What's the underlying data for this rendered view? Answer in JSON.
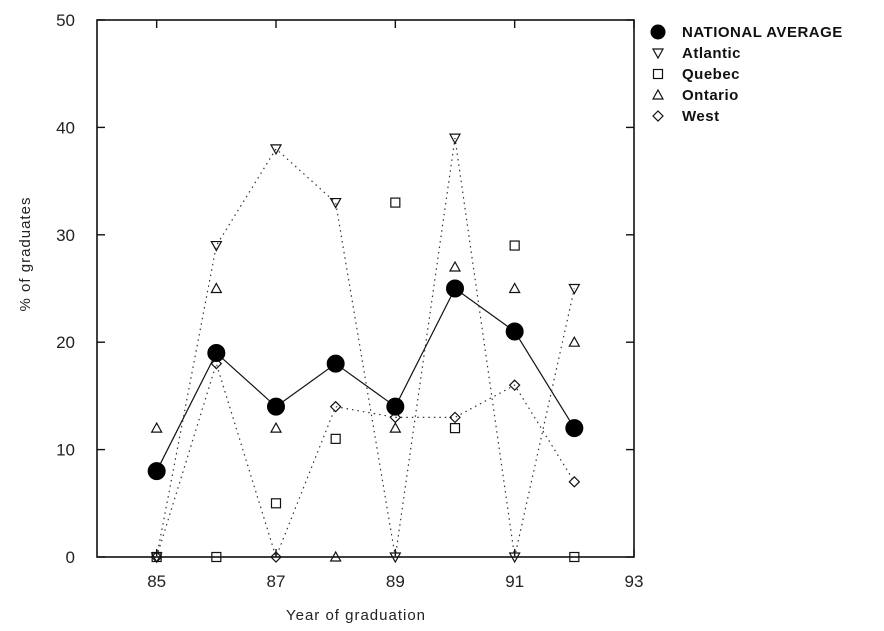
{
  "chart_data": {
    "type": "line",
    "xlabel": "Year of graduation",
    "ylabel": "% of graduates",
    "xlim": [
      84,
      93
    ],
    "ylim": [
      0,
      50
    ],
    "xticks": [
      "85",
      "87",
      "89",
      "91",
      "93"
    ],
    "xtick_values": [
      85,
      87,
      89,
      91,
      93
    ],
    "yticks": [
      "0",
      "10",
      "20",
      "30",
      "40",
      "50"
    ],
    "ytick_values": [
      0,
      10,
      20,
      30,
      40,
      50
    ],
    "grid": false,
    "legend_position": "right",
    "series": [
      {
        "name": "NATIONAL AVERAGE",
        "marker": "filled-circle",
        "line": "solid",
        "color": "#000000",
        "x": [
          85,
          86,
          87,
          88,
          89,
          90,
          91,
          92
        ],
        "y": [
          8,
          19,
          14,
          18,
          14,
          25,
          21,
          12
        ]
      },
      {
        "name": "Atlantic",
        "marker": "down-triangle",
        "line": "dotted",
        "color": "#000000",
        "x": [
          85,
          86,
          87,
          88,
          89,
          90,
          91,
          92
        ],
        "y": [
          0,
          29,
          38,
          33,
          0,
          39,
          0,
          25
        ]
      },
      {
        "name": "Quebec",
        "marker": "square",
        "line": "none",
        "color": "#000000",
        "x": [
          85,
          86,
          87,
          88,
          89,
          90,
          91,
          92
        ],
        "y": [
          0,
          0,
          5,
          11,
          33,
          12,
          29,
          0
        ]
      },
      {
        "name": "Ontario",
        "marker": "up-triangle",
        "line": "none",
        "color": "#000000",
        "x": [
          85,
          86,
          87,
          88,
          89,
          90,
          91,
          92
        ],
        "y": [
          12,
          25,
          12,
          0,
          12,
          27,
          25,
          20
        ]
      },
      {
        "name": "West",
        "marker": "diamond",
        "line": "dotted-partial",
        "color": "#000000",
        "x": [
          85,
          86,
          87,
          88,
          89,
          90,
          91,
          92
        ],
        "y": [
          0,
          18,
          0,
          14,
          13,
          13,
          16,
          7
        ]
      }
    ]
  }
}
